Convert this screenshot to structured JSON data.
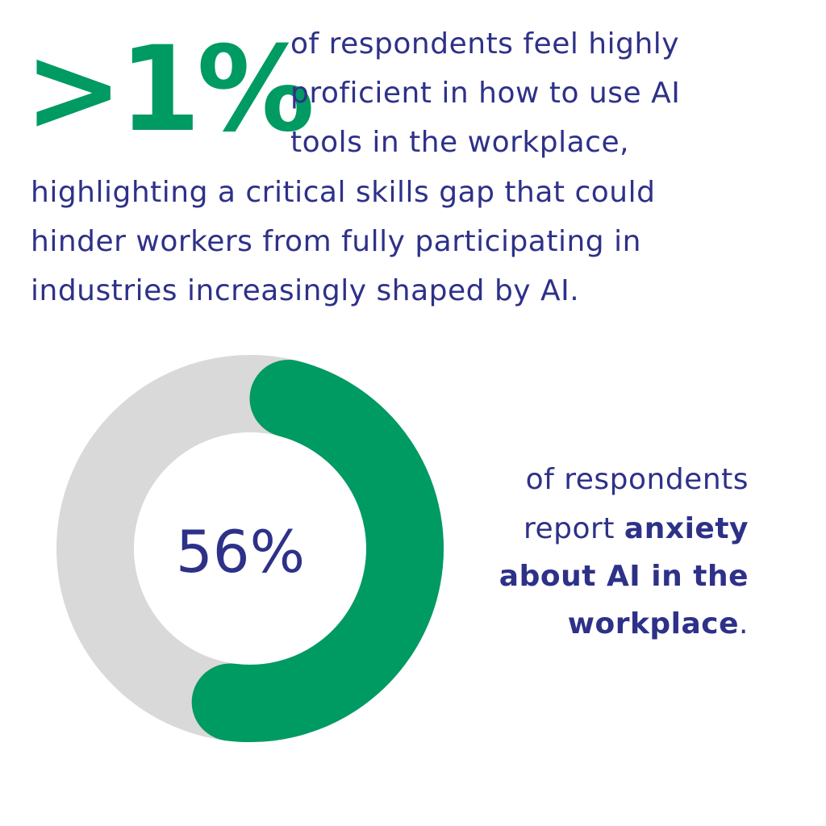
{
  "colors": {
    "green": "#009a63",
    "navy": "#2e3188",
    "track": "#d9d9d9"
  },
  "headline": {
    "stat": ">1%",
    "line1": "of respondents feel highly",
    "line2": "proficient in how to use AI",
    "line3": "tools in the workplace,",
    "body1": "highlighting a critical skills gap that could",
    "body2": "hinder workers from fully participating in",
    "body3": "industries increasingly shaped by AI."
  },
  "chart_data": {
    "type": "pie",
    "style": "donut",
    "values": [
      56,
      44
    ],
    "center_label": "56%"
  },
  "caption": {
    "line1": "of respondents",
    "line2_plain": "report ",
    "line2_bold": "anxiety",
    "line3_bold": "about AI in the",
    "line4_bold": "workplace",
    "line4_plain": "."
  }
}
